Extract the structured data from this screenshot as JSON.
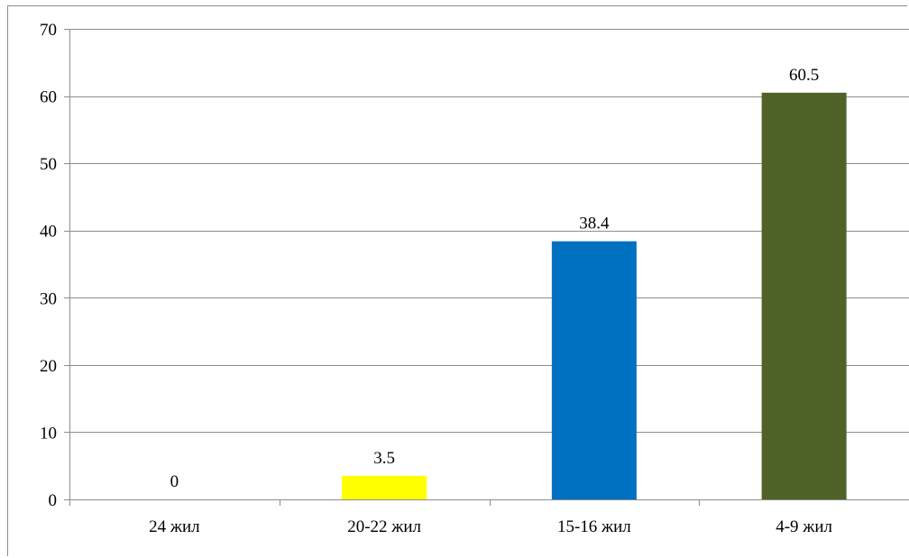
{
  "chart_data": {
    "type": "bar",
    "categories": [
      "24 жил",
      "20-22 жил",
      "15-16 жил",
      "4-9 жил"
    ],
    "values": [
      0,
      3.5,
      38.4,
      60.5
    ],
    "colors": [
      "#ffffff",
      "#ffff00",
      "#0070c0",
      "#4f6228"
    ],
    "data_labels": [
      "0",
      "3.5",
      "38.4",
      "60.5"
    ],
    "ylim": [
      0,
      70
    ],
    "yticks": [
      0,
      10,
      20,
      30,
      40,
      50,
      60,
      70
    ],
    "grid": true,
    "title": "",
    "xlabel": "",
    "ylabel": ""
  }
}
